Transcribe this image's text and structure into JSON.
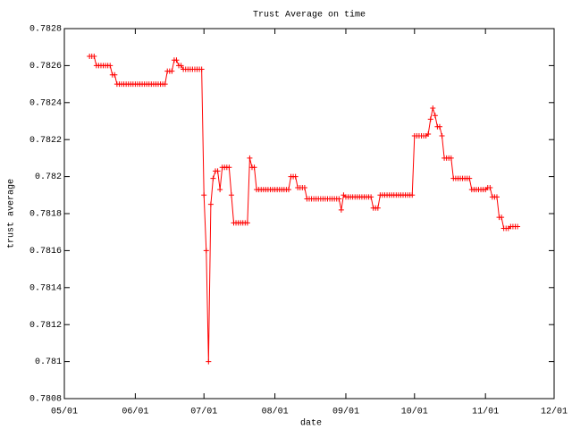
{
  "chart_data": {
    "type": "line",
    "title": "Trust Average on time",
    "x_label": "date",
    "y_label": "trust average",
    "x": [
      "05/12",
      "05/13",
      "05/14",
      "05/15",
      "05/16",
      "05/17",
      "05/18",
      "05/19",
      "05/20",
      "05/21",
      "05/22",
      "05/23",
      "05/24",
      "05/25",
      "05/26",
      "05/27",
      "05/28",
      "05/29",
      "05/30",
      "05/31",
      "06/01",
      "06/02",
      "06/03",
      "06/04",
      "06/05",
      "06/06",
      "06/07",
      "06/08",
      "06/09",
      "06/10",
      "06/11",
      "06/12",
      "06/13",
      "06/14",
      "06/15",
      "06/16",
      "06/17",
      "06/18",
      "06/19",
      "06/20",
      "06/21",
      "06/22",
      "06/23",
      "06/24",
      "06/25",
      "06/26",
      "06/27",
      "06/28",
      "06/29",
      "06/30",
      "07/01",
      "07/02",
      "07/03",
      "07/04",
      "07/05",
      "07/06",
      "07/07",
      "07/08",
      "07/09",
      "07/10",
      "07/11",
      "07/12",
      "07/13",
      "07/14",
      "07/15",
      "07/16",
      "07/17",
      "07/18",
      "07/19",
      "07/20",
      "07/21",
      "07/22",
      "07/23",
      "07/24",
      "07/25",
      "07/26",
      "07/27",
      "07/28",
      "07/29",
      "07/30",
      "07/31",
      "08/01",
      "08/02",
      "08/03",
      "08/04",
      "08/05",
      "08/06",
      "08/07",
      "08/08",
      "08/09",
      "08/10",
      "08/11",
      "08/12",
      "08/13",
      "08/14",
      "08/15",
      "08/16",
      "08/17",
      "08/18",
      "08/19",
      "08/20",
      "08/21",
      "08/22",
      "08/23",
      "08/24",
      "08/25",
      "08/26",
      "08/27",
      "08/28",
      "08/29",
      "08/30",
      "08/31",
      "09/01",
      "09/02",
      "09/03",
      "09/04",
      "09/05",
      "09/06",
      "09/07",
      "09/08",
      "09/09",
      "09/10",
      "09/11",
      "09/12",
      "09/13",
      "09/14",
      "09/15",
      "09/16",
      "09/17",
      "09/18",
      "09/19",
      "09/20",
      "09/21",
      "09/22",
      "09/23",
      "09/24",
      "09/25",
      "09/26",
      "09/27",
      "09/28",
      "09/29",
      "09/30",
      "10/01",
      "10/02",
      "10/03",
      "10/04",
      "10/05",
      "10/06",
      "10/07",
      "10/08",
      "10/09",
      "10/10",
      "10/11",
      "10/12",
      "10/13",
      "10/14",
      "10/15",
      "10/16",
      "10/17",
      "10/18",
      "10/19",
      "10/20",
      "10/21",
      "10/22",
      "10/23",
      "10/24",
      "10/25",
      "10/26",
      "10/27",
      "10/28",
      "10/29",
      "10/30",
      "10/31",
      "11/01",
      "11/02",
      "11/03",
      "11/04",
      "11/05",
      "11/06",
      "11/07",
      "11/08",
      "11/09",
      "11/10",
      "11/11",
      "11/12",
      "11/13",
      "11/14",
      "11/15"
    ],
    "series": [
      {
        "color": "#ff0000",
        "values": [
          0.78265,
          0.78265,
          0.78265,
          0.7826,
          0.7826,
          0.7826,
          0.7826,
          0.7826,
          0.7826,
          0.7826,
          0.78255,
          0.78255,
          0.7825,
          0.7825,
          0.7825,
          0.7825,
          0.7825,
          0.7825,
          0.7825,
          0.7825,
          0.7825,
          0.7825,
          0.7825,
          0.7825,
          0.7825,
          0.7825,
          0.7825,
          0.7825,
          0.7825,
          0.7825,
          0.7825,
          0.7825,
          0.7825,
          0.7825,
          0.78257,
          0.78257,
          0.78257,
          0.78263,
          0.78263,
          0.7826,
          0.7826,
          0.78258,
          0.78258,
          0.78258,
          0.78258,
          0.78258,
          0.78258,
          0.78258,
          0.78258,
          0.78258,
          0.7819,
          0.7816,
          0.781,
          0.78185,
          0.78199,
          0.78203,
          0.78203,
          0.78193,
          0.78205,
          0.78205,
          0.78205,
          0.78205,
          0.7819,
          0.78175,
          0.78175,
          0.78175,
          0.78175,
          0.78175,
          0.78175,
          0.78175,
          0.7821,
          0.78205,
          0.78205,
          0.78193,
          0.78193,
          0.78193,
          0.78193,
          0.78193,
          0.78193,
          0.78193,
          0.78193,
          0.78193,
          0.78193,
          0.78193,
          0.78193,
          0.78193,
          0.78193,
          0.78193,
          0.782,
          0.782,
          0.782,
          0.78194,
          0.78194,
          0.78194,
          0.78194,
          0.78188,
          0.78188,
          0.78188,
          0.78188,
          0.78188,
          0.78188,
          0.78188,
          0.78188,
          0.78188,
          0.78188,
          0.78188,
          0.78188,
          0.78188,
          0.78188,
          0.78188,
          0.78182,
          0.7819,
          0.78189,
          0.78189,
          0.78189,
          0.78189,
          0.78189,
          0.78189,
          0.78189,
          0.78189,
          0.78189,
          0.78189,
          0.78189,
          0.78189,
          0.78183,
          0.78183,
          0.78183,
          0.7819,
          0.7819,
          0.7819,
          0.7819,
          0.7819,
          0.7819,
          0.7819,
          0.7819,
          0.7819,
          0.7819,
          0.7819,
          0.7819,
          0.7819,
          0.7819,
          0.7819,
          0.78222,
          0.78222,
          0.78222,
          0.78222,
          0.78222,
          0.78222,
          0.78223,
          0.78231,
          0.78237,
          0.78233,
          0.78227,
          0.78227,
          0.78222,
          0.7821,
          0.7821,
          0.7821,
          0.7821,
          0.78199,
          0.78199,
          0.78199,
          0.78199,
          0.78199,
          0.78199,
          0.78199,
          0.78199,
          0.78193,
          0.78193,
          0.78193,
          0.78193,
          0.78193,
          0.78193,
          0.78193,
          0.78194,
          0.78194,
          0.78189,
          0.78189,
          0.78189,
          0.78178,
          0.78178,
          0.78172,
          0.78172,
          0.78172,
          0.78173,
          0.78173,
          0.78173,
          0.78173
        ]
      }
    ],
    "xlim": [
      "05/01",
      "12/01"
    ],
    "xticks": [
      "05/01",
      "06/01",
      "07/01",
      "08/01",
      "09/01",
      "10/01",
      "11/01",
      "12/01"
    ],
    "ylim": [
      0.7808,
      0.7828
    ],
    "yticks": [
      0.7808,
      0.781,
      0.7812,
      0.7814,
      0.7816,
      0.7818,
      0.782,
      0.7822,
      0.7824,
      0.7826,
      0.7828
    ],
    "grid": false
  }
}
